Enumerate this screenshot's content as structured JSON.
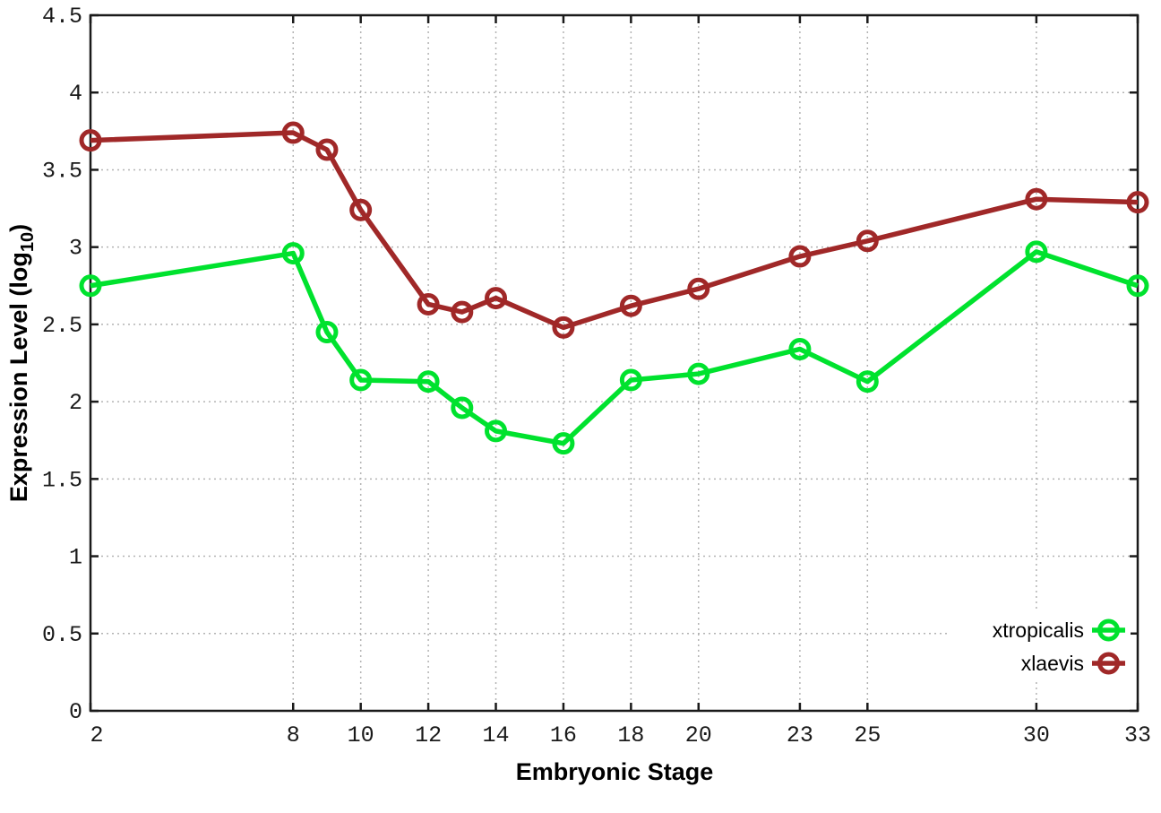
{
  "style": {
    "background": "#ffffff",
    "border_color": "#1a1a1a",
    "grid_color": "#b3b3b3",
    "tick_label_color": "#1a1a1a",
    "title_color": "#000000"
  },
  "chart_data": {
    "type": "line",
    "title": "",
    "xlabel": "Embryonic Stage",
    "ylabel": "Expression Level (log10)",
    "ylabel_rich": {
      "prefix": "Expression Level (log",
      "sub": "10",
      "suffix": ")"
    },
    "xlim": [
      2,
      33
    ],
    "ylim": [
      0,
      4.5
    ],
    "xticks": [
      2,
      8,
      10,
      12,
      14,
      16,
      18,
      20,
      23,
      25,
      30,
      33
    ],
    "xtick_labels": [
      "2",
      "8",
      "10",
      "12",
      "14",
      "16",
      "18",
      "20",
      "23",
      "25",
      "30",
      "33"
    ],
    "yticks": [
      0,
      0.5,
      1,
      1.5,
      2,
      2.5,
      3,
      3.5,
      4,
      4.5
    ],
    "ytick_labels": [
      "0",
      "0.5",
      "1",
      "1.5",
      "2",
      "2.5",
      "3",
      "3.5",
      "4",
      "4.5"
    ],
    "grid": true,
    "legend_position": "bottom-right",
    "x": [
      2,
      8,
      9,
      10,
      12,
      13,
      14,
      16,
      18,
      20,
      23,
      25,
      30,
      33
    ],
    "series": [
      {
        "name": "xtropicalis",
        "color": "#00e22e",
        "marker": "open-circle",
        "values": [
          2.75,
          2.96,
          2.45,
          2.14,
          2.13,
          1.96,
          1.81,
          1.73,
          2.14,
          2.18,
          2.34,
          2.13,
          2.97,
          2.75
        ]
      },
      {
        "name": "xlaevis",
        "color": "#a02828",
        "marker": "open-circle",
        "values": [
          3.69,
          3.74,
          3.63,
          3.24,
          2.63,
          2.58,
          2.67,
          2.48,
          2.62,
          2.73,
          2.94,
          3.04,
          3.31,
          3.29
        ]
      }
    ]
  }
}
